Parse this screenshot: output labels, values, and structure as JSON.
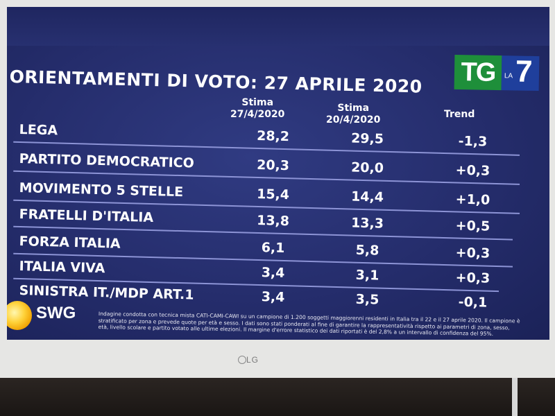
{
  "screen": {
    "title": "ORIENTAMENTI DI VOTO: 27 APRILE 2020",
    "logo": {
      "tg": "TG",
      "la": "LA",
      "seven": "7"
    },
    "columns": {
      "stima1": [
        "Stima",
        "27/4/2020"
      ],
      "stima2": [
        "Stima",
        "20/4/2020"
      ],
      "trend": "Trend"
    },
    "rows": [
      {
        "party": "LEGA",
        "s1": "28,2",
        "s2": "29,5",
        "trend": "-1,3"
      },
      {
        "party": "PARTITO DEMOCRATICO",
        "s1": "20,3",
        "s2": "20,0",
        "trend": "+0,3"
      },
      {
        "party": "MOVIMENTO 5 STELLE",
        "s1": "15,4",
        "s2": "14,4",
        "trend": "+1,0"
      },
      {
        "party": "FRATELLI D'ITALIA",
        "s1": "13,8",
        "s2": "13,3",
        "trend": "+0,5"
      },
      {
        "party": "FORZA ITALIA",
        "s1": "6,1",
        "s2": "5,8",
        "trend": "+0,3"
      },
      {
        "party": "ITALIA VIVA",
        "s1": "3,4",
        "s2": "3,1",
        "trend": "+0,3"
      },
      {
        "party": "SINISTRA IT./MDP ART.1",
        "s1": "3,4",
        "s2": "3,5",
        "trend": "-0,1"
      }
    ],
    "source_logo": "SWG",
    "note": "Indagine condotta con tecnica mista CATI-CAMI-CAWI su un campione di 1.200 soggetti maggiorenni residenti in Italia tra il 22 e il 27 aprile 2020. Il campione è stratificato per zona e prevede quote per età e sesso. I dati sono stati ponderati al fine di garantire la rappresentatività rispetto ai parametri di zona, sesso, età, livello scolare e partito votato alle ultime elezioni. Il margine d'errore statistico dei dati riportati è del 2,8% a un intervallo di confidenza del 95%."
  },
  "tv": {
    "brand": "LG"
  },
  "colors": {
    "screen_bg": "#2a3377",
    "logo_green": "#1e8f3a",
    "logo_blue": "#1f3f9c",
    "divider": "#8d94d6"
  }
}
